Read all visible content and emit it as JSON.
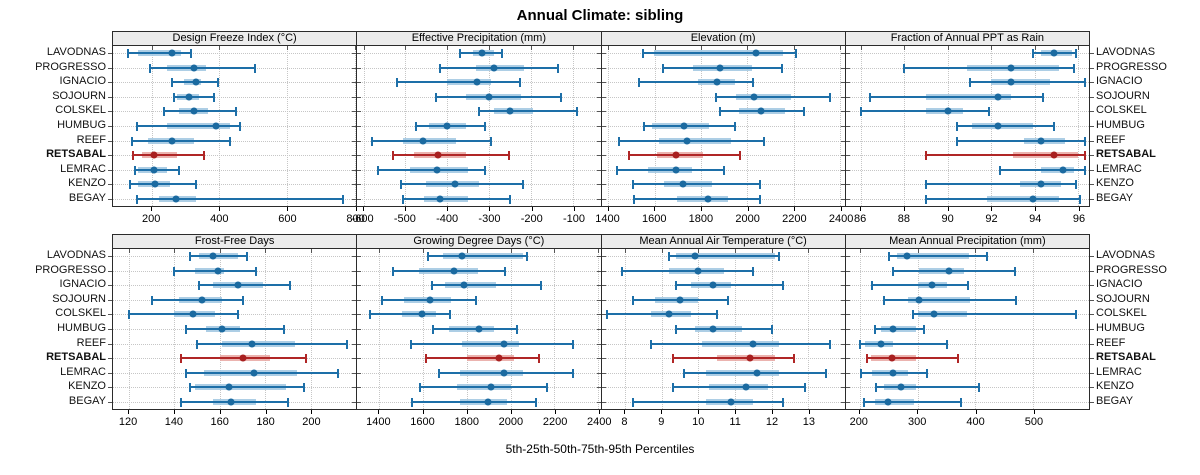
{
  "title": "Annual Climate: sibling",
  "caption": "5th-25th-50th-75th-95th Percentiles",
  "sites": [
    "LAVODNAS",
    "PROGRESSO",
    "IGNACIO",
    "SOJOURN",
    "COLSKEL",
    "HUMBUG",
    "REEF",
    "RETSABAL",
    "LEMRAC",
    "KENZO",
    "BEGAY"
  ],
  "highlight_site": "RETSABAL",
  "colors": {
    "blue_line": "#1d6fa8",
    "blue_band": "#9fc6e0",
    "blue_dot": "#1b6aa0",
    "red_line": "#b02626",
    "red_band": "#e7a6a1",
    "red_dot": "#a82020",
    "grid": "#c6c6c6",
    "strip_bg": "#ececec",
    "border": "#2b2b2b"
  },
  "chart_data": {
    "type": "dotplot-percentile-trellis",
    "percentiles": [
      5,
      25,
      50,
      75,
      95
    ],
    "rows_top_to_bottom": [
      "LAVODNAS",
      "PROGRESSO",
      "IGNACIO",
      "SOJOURN",
      "COLSKEL",
      "HUMBUG",
      "REEF",
      "RETSABAL",
      "LEMRAC",
      "KENZO",
      "BEGAY"
    ],
    "panels": [
      {
        "row": "top",
        "title": "Design Freeze Index (°C)",
        "ticks": [
          200,
          400,
          600,
          800
        ],
        "range": [
          85,
          805
        ],
        "values": {
          "LAVODNAS": [
            130,
            160,
            260,
            285,
            315
          ],
          "PROGRESSO": [
            195,
            245,
            325,
            360,
            505
          ],
          "IGNACIO": [
            260,
            295,
            330,
            345,
            395
          ],
          "SOJOURN": [
            265,
            275,
            310,
            340,
            385
          ],
          "COLSKEL": [
            235,
            280,
            325,
            365,
            450
          ],
          "HUMBUG": [
            155,
            245,
            390,
            430,
            460
          ],
          "REEF": [
            140,
            190,
            260,
            325,
            430
          ],
          "RETSABAL": [
            145,
            170,
            205,
            275,
            355
          ],
          "LEMRAC": [
            150,
            160,
            205,
            245,
            280
          ],
          "KENZO": [
            135,
            160,
            208,
            255,
            330
          ],
          "BEGAY": [
            155,
            220,
            270,
            330,
            765
          ]
        }
      },
      {
        "row": "top",
        "title": "Effective Precipitation (mm)",
        "ticks": [
          -600,
          -500,
          -400,
          -300,
          -200,
          -100
        ],
        "range": [
          -615,
          -35
        ],
        "values": {
          "LAVODNAS": [
            -370,
            -340,
            -317,
            -290,
            -270
          ],
          "PROGRESSO": [
            -417,
            -332,
            -288,
            -218,
            -136
          ],
          "IGNACIO": [
            -520,
            -400,
            -330,
            -295,
            -228
          ],
          "SOJOURN": [
            -427,
            -355,
            -300,
            -225,
            -130
          ],
          "COLSKEL": [
            -325,
            -290,
            -250,
            -197,
            -90
          ],
          "HUMBUG": [
            -475,
            -445,
            -400,
            -355,
            -310
          ],
          "REEF": [
            -580,
            -505,
            -458,
            -380,
            -296
          ],
          "RETSABAL": [
            -530,
            -480,
            -422,
            -355,
            -252
          ],
          "LEMRAC": [
            -565,
            -490,
            -424,
            -350,
            -310
          ],
          "KENZO": [
            -510,
            -450,
            -382,
            -325,
            -220
          ],
          "BEGAY": [
            -507,
            -455,
            -417,
            -350,
            -250
          ]
        }
      },
      {
        "row": "top",
        "title": "Elevation (m)",
        "ticks": [
          1400,
          1600,
          1800,
          2000,
          2200,
          2400
        ],
        "range": [
          1370,
          2420
        ],
        "values": {
          "LAVODNAS": [
            1550,
            1595,
            2035,
            2155,
            2210
          ],
          "PROGRESSO": [
            1635,
            1765,
            1880,
            2020,
            2150
          ],
          "IGNACIO": [
            1530,
            1785,
            1870,
            1945,
            2025
          ],
          "SOJOURN": [
            1865,
            1950,
            2030,
            2190,
            2355
          ],
          "COLSKEL": [
            1880,
            1965,
            2060,
            2160,
            2245
          ],
          "HUMBUG": [
            1555,
            1590,
            1725,
            1835,
            1945
          ],
          "REEF": [
            1445,
            1620,
            1740,
            1930,
            2070
          ],
          "RETSABAL": [
            1490,
            1610,
            1690,
            1810,
            1970
          ],
          "LEMRAC": [
            1435,
            1570,
            1690,
            1760,
            1900
          ],
          "KENZO": [
            1505,
            1640,
            1720,
            1845,
            2055
          ],
          "BEGAY": [
            1510,
            1695,
            1830,
            1915,
            2055
          ]
        }
      },
      {
        "row": "top",
        "title": "Fraction of Annual PPT as Rain",
        "ticks": [
          86,
          88,
          90,
          92,
          94,
          96
        ],
        "range": [
          85.3,
          96.5
        ],
        "values": {
          "LAVODNAS": [
            93.9,
            94.3,
            94.9,
            95.7,
            95.9
          ],
          "PROGRESSO": [
            88.0,
            90.9,
            92.9,
            95.1,
            95.8
          ],
          "IGNACIO": [
            91.0,
            92.0,
            92.9,
            94.7,
            96.3
          ],
          "SOJOURN": [
            86.4,
            89.0,
            92.3,
            92.9,
            94.4
          ],
          "COLSKEL": [
            86.0,
            89.0,
            90.0,
            90.7,
            91.9
          ],
          "HUMBUG": [
            90.4,
            91.1,
            92.3,
            93.9,
            94.9
          ],
          "REEF": [
            90.4,
            93.5,
            94.3,
            95.4,
            96.3
          ],
          "RETSABAL": [
            89.0,
            93.0,
            94.9,
            96.0,
            96.3
          ],
          "LEMRAC": [
            92.4,
            94.3,
            95.3,
            95.8,
            96.3
          ],
          "KENZO": [
            89.0,
            93.3,
            94.3,
            95.2,
            95.9
          ],
          "BEGAY": [
            89.0,
            91.8,
            93.9,
            95.1,
            96.1
          ]
        }
      },
      {
        "row": "bottom",
        "title": "Frost-Free Days",
        "ticks": [
          120,
          140,
          160,
          180,
          200
        ],
        "range": [
          113,
          220
        ],
        "values": {
          "LAVODNAS": [
            147,
            151,
            157,
            168,
            172
          ],
          "PROGRESSO": [
            140,
            149,
            159,
            162,
            176
          ],
          "IGNACIO": [
            151,
            157,
            168,
            179,
            191
          ],
          "SOJOURN": [
            130,
            142,
            152,
            161,
            170
          ],
          "COLSKEL": [
            120,
            140,
            148,
            158,
            168
          ],
          "HUMBUG": [
            145,
            154,
            161,
            169,
            188
          ],
          "REEF": [
            150,
            161,
            174,
            193,
            216
          ],
          "RETSABAL": [
            143,
            160,
            170,
            182,
            198
          ],
          "LEMRAC": [
            145,
            153,
            175,
            194,
            212
          ],
          "KENZO": [
            147,
            149,
            164,
            189,
            197
          ],
          "BEGAY": [
            143,
            157,
            165,
            176,
            190
          ]
        }
      },
      {
        "row": "bottom",
        "title": "Growing Degree Days (°C)",
        "ticks": [
          1400,
          1600,
          1800,
          2000,
          2200,
          2400
        ],
        "range": [
          1300,
          2410
        ],
        "values": {
          "LAVODNAS": [
            1625,
            1690,
            1780,
            2055,
            2075
          ],
          "PROGRESSO": [
            1465,
            1580,
            1740,
            1850,
            1975
          ],
          "IGNACIO": [
            1640,
            1700,
            1785,
            1935,
            2140
          ],
          "SOJOURN": [
            1415,
            1515,
            1630,
            1730,
            1840
          ],
          "COLSKEL": [
            1360,
            1505,
            1595,
            1660,
            1725
          ],
          "HUMBUG": [
            1645,
            1720,
            1855,
            1925,
            2030
          ],
          "REEF": [
            1545,
            1780,
            1970,
            2040,
            2285
          ],
          "RETSABAL": [
            1615,
            1800,
            1945,
            2015,
            2130
          ],
          "LEMRAC": [
            1675,
            1770,
            1970,
            2055,
            2285
          ],
          "KENZO": [
            1585,
            1757,
            1910,
            2000,
            2165
          ],
          "BEGAY": [
            1550,
            1770,
            1895,
            1985,
            2115
          ]
        }
      },
      {
        "row": "bottom",
        "title": "Mean Annual Air Temperature (°C)",
        "ticks": [
          8,
          9,
          10,
          11,
          12,
          13
        ],
        "range": [
          7.35,
          14.0
        ],
        "values": {
          "LAVODNAS": [
            9.2,
            9.4,
            9.9,
            12.1,
            12.2
          ],
          "PROGRESSO": [
            7.9,
            9.2,
            10.0,
            10.7,
            11.5
          ],
          "IGNACIO": [
            9.4,
            9.8,
            10.4,
            10.9,
            12.3
          ],
          "SOJOURN": [
            8.2,
            8.8,
            9.5,
            10.0,
            10.8
          ],
          "COLSKEL": [
            7.5,
            8.7,
            9.2,
            9.8,
            10.5
          ],
          "HUMBUG": [
            9.4,
            9.9,
            10.4,
            11.2,
            12.0
          ],
          "REEF": [
            8.7,
            10.1,
            11.5,
            12.2,
            13.6
          ],
          "RETSABAL": [
            9.3,
            10.5,
            11.4,
            12.1,
            12.6
          ],
          "LEMRAC": [
            9.6,
            10.2,
            11.6,
            12.2,
            13.5
          ],
          "KENZO": [
            9.3,
            10.3,
            11.3,
            11.9,
            12.9
          ],
          "BEGAY": [
            8.2,
            10.2,
            10.9,
            11.5,
            12.3
          ]
        }
      },
      {
        "row": "bottom",
        "title": "Mean Annual Precipitation (mm)",
        "ticks": [
          200,
          300,
          400,
          500
        ],
        "range": [
          176,
          596
        ],
        "values": {
          "LAVODNAS": [
            250,
            265,
            282,
            388,
            420
          ],
          "PROGRESSO": [
            257,
            303,
            355,
            381,
            468
          ],
          "IGNACIO": [
            222,
            300,
            325,
            350,
            387
          ],
          "SOJOURN": [
            242,
            284,
            303,
            390,
            470
          ],
          "COLSKEL": [
            292,
            301,
            328,
            385,
            574
          ],
          "HUMBUG": [
            226,
            236,
            257,
            297,
            311
          ],
          "REEF": [
            200,
            210,
            236,
            258,
            350
          ],
          "RETSABAL": [
            212,
            220,
            255,
            297,
            369
          ],
          "LEMRAC": [
            203,
            222,
            258,
            284,
            317
          ],
          "KENZO": [
            228,
            242,
            272,
            297,
            406
          ],
          "BEGAY": [
            207,
            226,
            249,
            294,
            375
          ]
        }
      }
    ]
  }
}
